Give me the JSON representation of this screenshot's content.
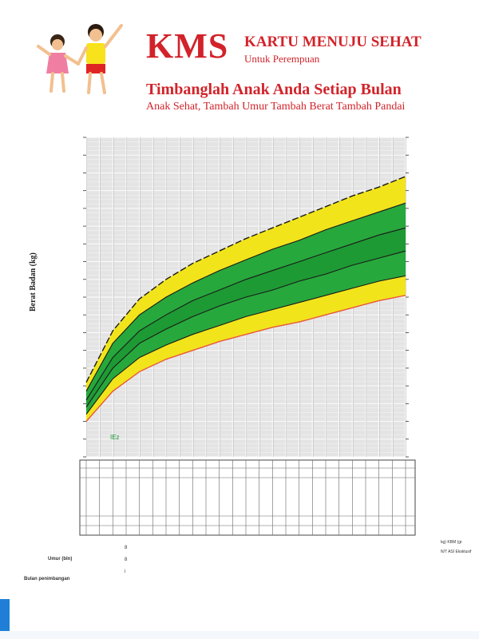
{
  "header": {
    "logo": "KMS",
    "title": "KARTU MENUJU SEHAT",
    "subtitle": "Untuk Perempuan",
    "headline": "Timbanglah Anak Anda Setiap Bulan",
    "tagline": "Anak Sehat, Tambah Umur Tambah Berat Tambah Pandai"
  },
  "chart_data": {
    "type": "area",
    "ylabel": "Berat Badan (kg)",
    "xlabel": "",
    "x": [
      0,
      2,
      4,
      6,
      8,
      10,
      12,
      14,
      16,
      18,
      20,
      22,
      24
    ],
    "ylim": [
      0,
      18
    ],
    "xlim": [
      0,
      24
    ],
    "grid": true,
    "band_colors": {
      "outer": "#f2e41b",
      "inner": "#27a83c",
      "center": "#1e9a34",
      "bottom_edge": "#e8573a",
      "grid_bg": "#e4e4e4"
    },
    "series": [
      {
        "values": [
          2.0,
          3.7,
          4.8,
          5.5,
          6.0,
          6.5,
          6.9,
          7.3,
          7.6,
          8.0,
          8.4,
          8.8,
          9.1
        ]
      },
      {
        "values": [
          2.4,
          4.4,
          5.6,
          6.3,
          6.9,
          7.4,
          7.9,
          8.3,
          8.7,
          9.1,
          9.5,
          9.9,
          10.2
        ]
      },
      {
        "values": [
          2.8,
          5.0,
          6.4,
          7.2,
          7.9,
          8.5,
          9.0,
          9.4,
          9.9,
          10.3,
          10.8,
          11.2,
          11.6
        ]
      },
      {
        "values": [
          3.2,
          5.6,
          7.1,
          8.0,
          8.8,
          9.4,
          10.0,
          10.5,
          11.0,
          11.5,
          12.0,
          12.5,
          12.9
        ]
      },
      {
        "values": [
          3.7,
          6.4,
          8.0,
          9.0,
          9.8,
          10.5,
          11.1,
          11.7,
          12.2,
          12.8,
          13.3,
          13.8,
          14.3
        ]
      },
      {
        "values": [
          4.2,
          7.1,
          8.9,
          10.0,
          10.9,
          11.6,
          12.3,
          12.9,
          13.5,
          14.1,
          14.7,
          15.2,
          15.8
        ]
      }
    ],
    "annotations": [
      "IEz"
    ]
  },
  "footer": {
    "row_labels": [
      "Umur (bln)",
      "Bulan penimbangan"
    ],
    "row_values": [
      "8",
      "8",
      "i"
    ],
    "side_notes": [
      "kg) KBM (gr",
      "N/T ASI Eksklusif"
    ]
  }
}
